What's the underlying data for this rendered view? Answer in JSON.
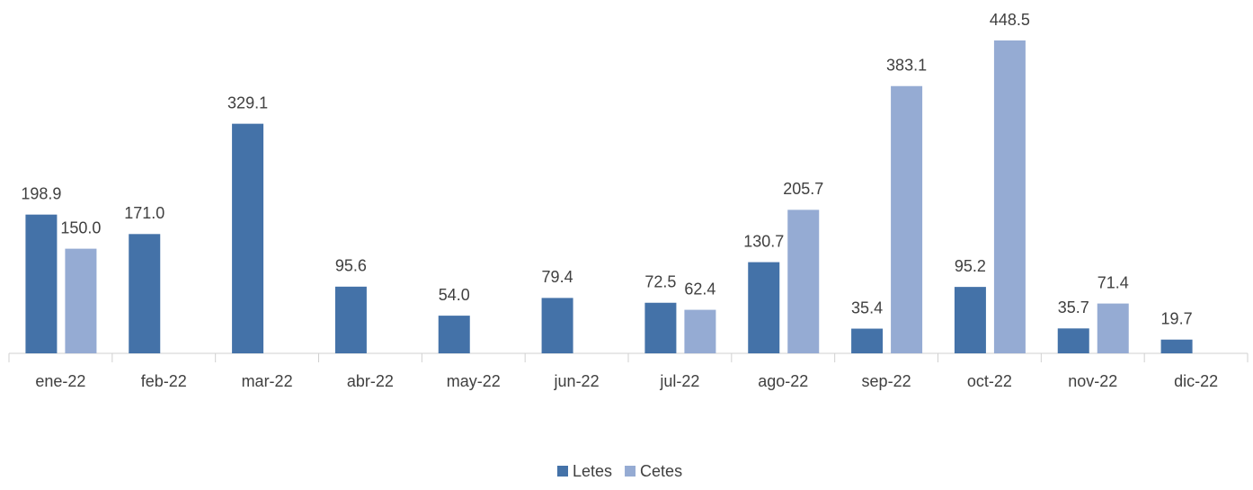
{
  "chart_data": {
    "type": "bar",
    "categories": [
      "ene-22",
      "feb-22",
      "mar-22",
      "abr-22",
      "may-22",
      "jun-22",
      "jul-22",
      "ago-22",
      "sep-22",
      "oct-22",
      "nov-22",
      "dic-22"
    ],
    "series": [
      {
        "name": "Letes",
        "color": "#4472a8",
        "values": [
          198.9,
          171.0,
          329.1,
          95.6,
          54.0,
          79.4,
          72.5,
          130.7,
          35.4,
          95.2,
          35.7,
          19.7
        ],
        "value_labels": [
          "198.9",
          "171.0",
          "329.1",
          "95.6",
          "54.0",
          "79.4",
          "72.5",
          "130.7",
          "35.4",
          "95.2",
          "35.7",
          "19.7"
        ]
      },
      {
        "name": "Cetes",
        "color": "#95abd3",
        "values": [
          150.0,
          null,
          null,
          null,
          null,
          null,
          62.4,
          205.7,
          383.1,
          448.5,
          71.4,
          null
        ],
        "value_labels": [
          "150.0",
          null,
          null,
          null,
          null,
          null,
          "62.4",
          "205.7",
          "383.1",
          "448.5",
          "71.4",
          null
        ]
      }
    ],
    "legend": "bottom"
  }
}
